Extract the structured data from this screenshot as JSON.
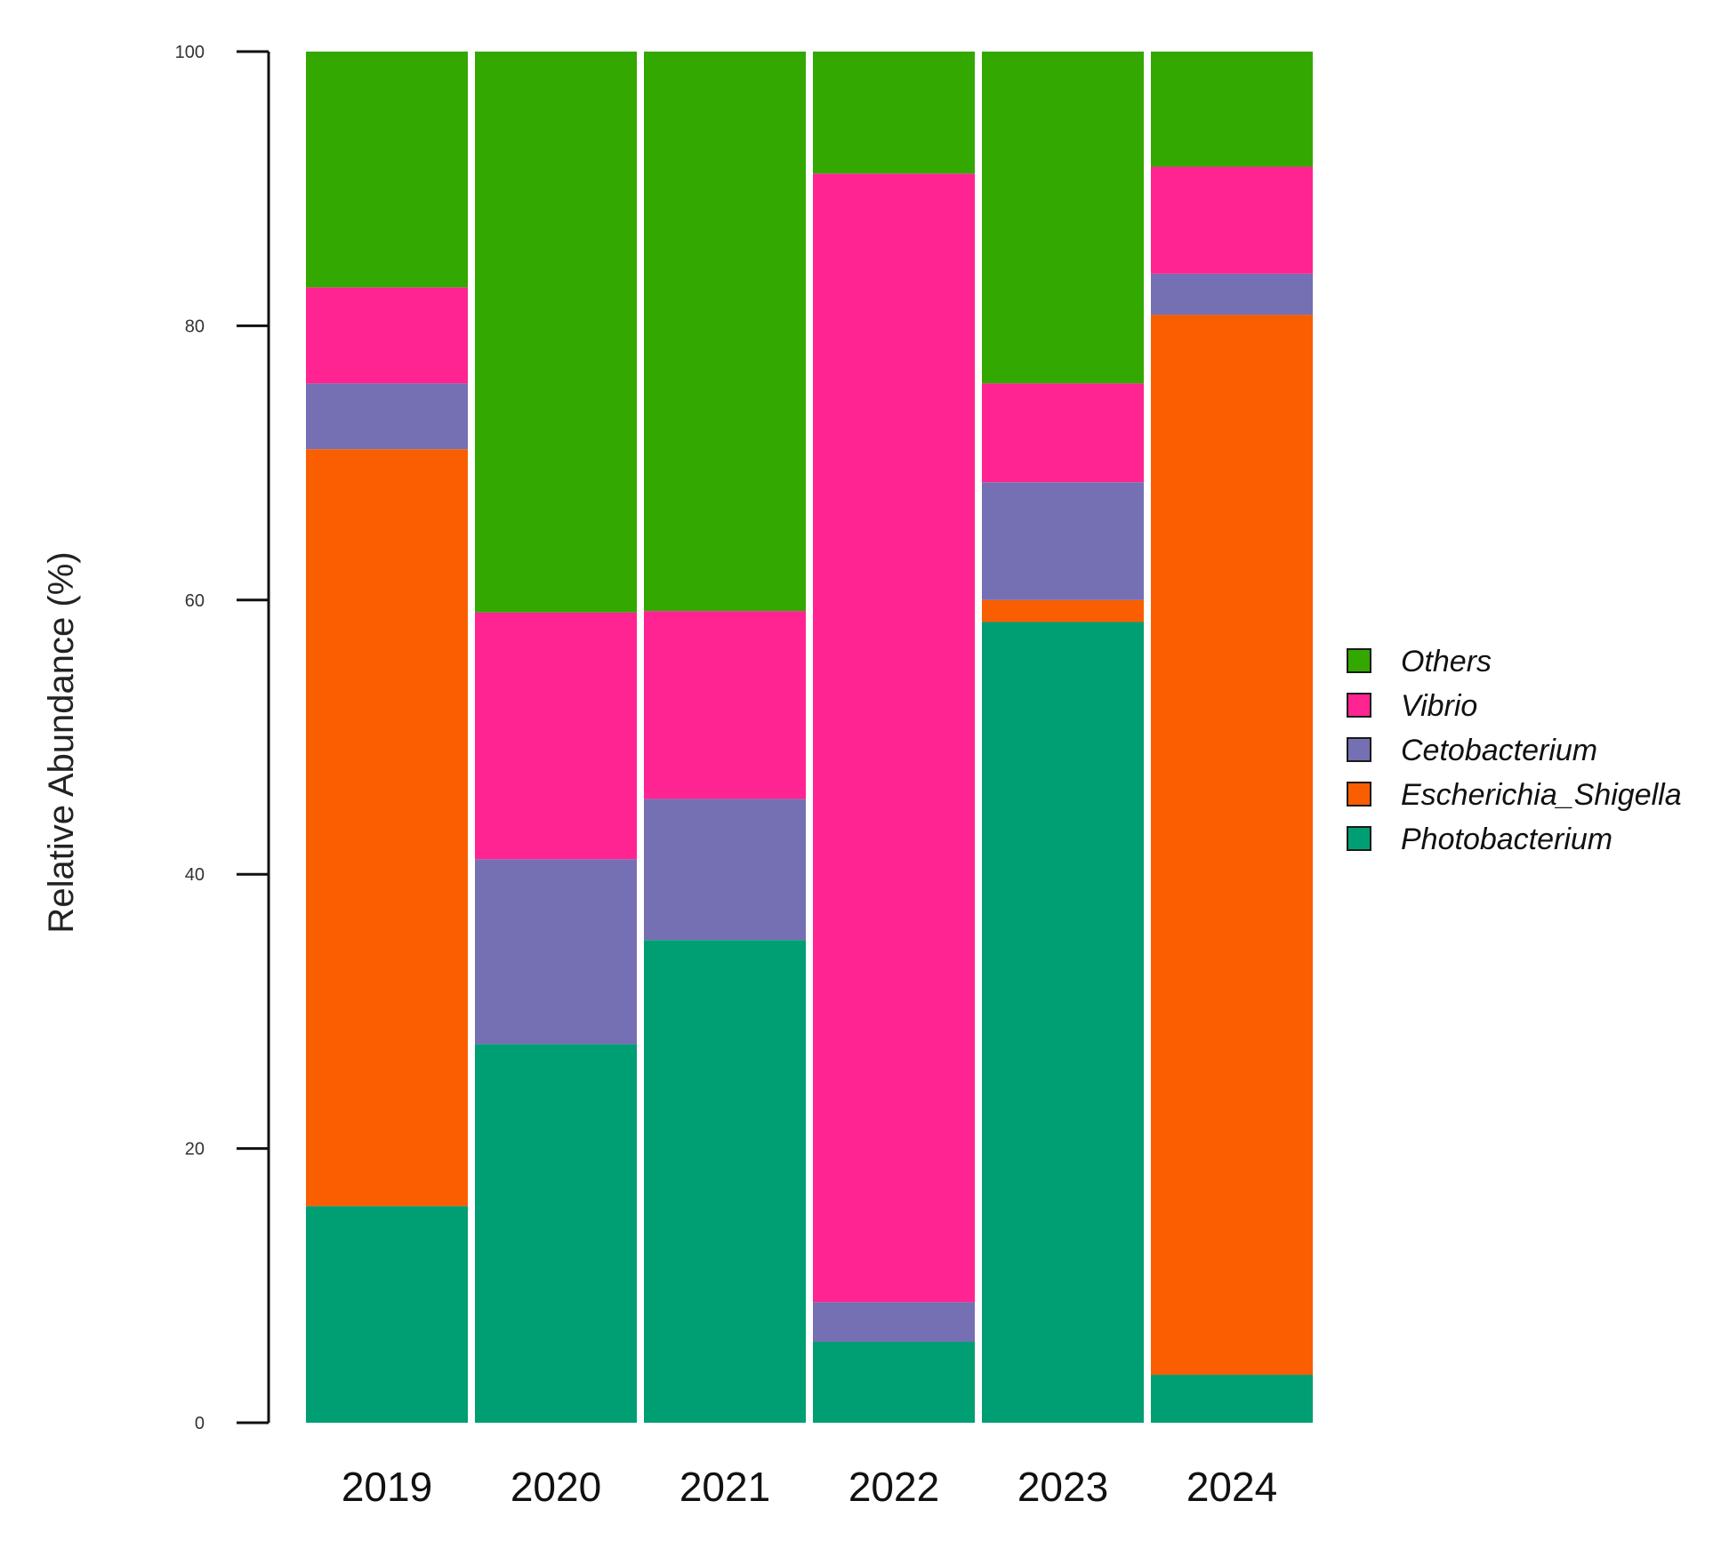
{
  "chart_data": {
    "type": "bar",
    "stacked": true,
    "title": "",
    "xlabel": "",
    "ylabel": "Relative Abundance (%)",
    "ylim": [
      0,
      100
    ],
    "yticks": [
      0,
      20,
      40,
      60,
      80,
      100
    ],
    "grid": false,
    "legend_position": "right",
    "categories": [
      "2019",
      "2020",
      "2021",
      "2022",
      "2023",
      "2024"
    ],
    "series": [
      {
        "name": "Photobacterium",
        "color": "#009E73",
        "values": [
          15.8,
          27.6,
          35.2,
          5.9,
          58.4,
          3.5
        ]
      },
      {
        "name": "Escherichia_Shigella",
        "color": "#F95E00",
        "values": [
          55.2,
          0.0,
          0.0,
          0.0,
          1.6,
          77.3
        ]
      },
      {
        "name": "Cetobacterium",
        "color": "#7570B3",
        "values": [
          4.8,
          13.5,
          10.3,
          2.9,
          8.6,
          3.0
        ]
      },
      {
        "name": "Vibrio",
        "color": "#FF2491",
        "values": [
          7.0,
          18.0,
          13.7,
          82.3,
          7.2,
          7.8
        ]
      },
      {
        "name": "Others",
        "color": "#33A800",
        "values": [
          17.2,
          40.9,
          40.8,
          8.9,
          24.2,
          8.4
        ]
      }
    ],
    "legend_order": [
      "Others",
      "Vibrio",
      "Cetobacterium",
      "Escherichia_Shigella",
      "Photobacterium"
    ]
  }
}
